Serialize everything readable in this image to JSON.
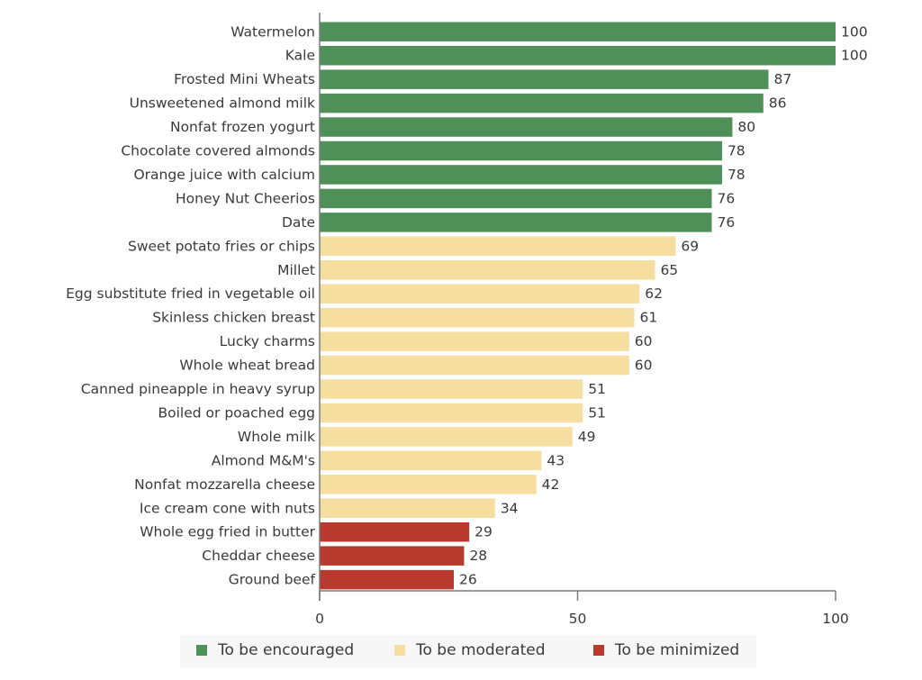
{
  "chart_data": {
    "type": "bar",
    "orientation": "horizontal",
    "title": "",
    "xlabel": "",
    "ylabel": "",
    "xlim": [
      0,
      100
    ],
    "xticks": [
      0,
      50,
      100
    ],
    "xtick_labels": [
      "0",
      "50",
      "100"
    ],
    "grid": false,
    "legend_position": "bottom",
    "categories": [
      "Watermelon",
      "Kale",
      "Frosted Mini Wheats",
      "Unsweetened almond milk",
      "Nonfat frozen yogurt",
      "Chocolate covered almonds",
      "Orange juice with calcium",
      "Honey Nut Cheerios",
      "Date",
      "Sweet potato fries or chips",
      "Millet",
      "Egg substitute fried in vegetable oil",
      "Skinless chicken breast",
      "Lucky charms",
      "Whole wheat bread",
      "Canned pineapple in heavy syrup",
      "Boiled or poached egg",
      "Whole milk",
      "Almond M&M's",
      "Nonfat mozzarella cheese",
      "Ice cream cone with nuts",
      "Whole egg fried in butter",
      "Cheddar cheese",
      "Ground beef"
    ],
    "values": [
      100,
      100,
      87,
      86,
      80,
      78,
      78,
      76,
      76,
      69,
      65,
      62,
      61,
      60,
      60,
      51,
      51,
      49,
      43,
      42,
      34,
      29,
      28,
      26
    ],
    "value_labels": [
      "100",
      "100",
      "87",
      "86",
      "80",
      "78",
      "78",
      "76",
      "76",
      "69",
      "65",
      "62",
      "61",
      "60",
      "60",
      "51",
      "51",
      "49",
      "43",
      "42",
      "34",
      "29",
      "28",
      "26"
    ],
    "groups": [
      "encouraged",
      "encouraged",
      "encouraged",
      "encouraged",
      "encouraged",
      "encouraged",
      "encouraged",
      "encouraged",
      "encouraged",
      "moderated",
      "moderated",
      "moderated",
      "moderated",
      "moderated",
      "moderated",
      "moderated",
      "moderated",
      "moderated",
      "moderated",
      "moderated",
      "moderated",
      "minimized",
      "minimized",
      "minimized"
    ],
    "legend": [
      {
        "key": "encouraged",
        "label": "To be encouraged",
        "color": "#4f9058"
      },
      {
        "key": "moderated",
        "label": "To be moderated",
        "color": "#f6dea0"
      },
      {
        "key": "minimized",
        "label": "To be minimized",
        "color": "#b83a2e"
      }
    ]
  }
}
